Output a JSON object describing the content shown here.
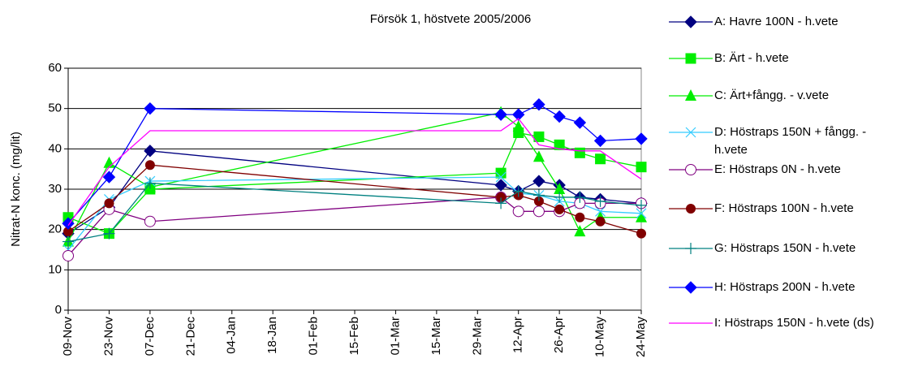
{
  "chart_data": {
    "type": "line",
    "title": "Försök 1, höstvete 2005/2006",
    "y_label": "Nitrat-N konc. (mg/lit)",
    "x": [
      "09-Nov",
      "23-Nov",
      "07-Dec",
      "06-Apr",
      "12-Apr",
      "19-Apr",
      "26-Apr",
      "03-May",
      "10-May",
      "24-May"
    ],
    "xlim": [
      "09-Nov",
      "24-May"
    ],
    "xticks": [
      "09-Nov",
      "23-Nov",
      "07-Dec",
      "21-Dec",
      "04-Jan",
      "18-Jan",
      "01-Feb",
      "15-Feb",
      "01-Mar",
      "15-Mar",
      "29-Mar",
      "12-Apr",
      "26-Apr",
      "10-May",
      "24-May"
    ],
    "ylim": [
      0,
      60
    ],
    "yticks": [
      0,
      10,
      20,
      30,
      40,
      50,
      60
    ],
    "grid": true,
    "legend": "right",
    "series": [
      {
        "name": "A: Havre 100N - h.vete",
        "color": "#000080",
        "marker": "diamond",
        "values": [
          19,
          25.5,
          39.5,
          31,
          29.5,
          32,
          31,
          28,
          27.5,
          26.5
        ]
      },
      {
        "name": "B: Ärt - h.vete",
        "color": "#00ee00",
        "marker": "square",
        "values": [
          23,
          19,
          30,
          34,
          44,
          43,
          41,
          39,
          37.5,
          35.5
        ]
      },
      {
        "name": "C: Ärt+fångg. - v.vete",
        "color": "#00ee00",
        "marker": "triangle",
        "values": [
          17,
          36.5,
          30.5,
          49,
          45.5,
          38,
          30,
          19.5,
          23,
          23
        ]
      },
      {
        "name": "D: Höstraps 150N + fångg. - h.vete",
        "color": "#33ccff",
        "marker": "x",
        "values": [
          15,
          27.5,
          32,
          33,
          29,
          28.5,
          27,
          26.5,
          24.5,
          24
        ]
      },
      {
        "name": "E: Höstraps 0N - h.vete",
        "color": "#800080",
        "marker": "open-circle",
        "values": [
          13.5,
          25,
          22,
          28,
          24.5,
          24.5,
          24.5,
          26.5,
          26.5,
          26.5
        ]
      },
      {
        "name": "F: Höstraps 100N - h.vete",
        "color": "#800000",
        "marker": "circle",
        "values": [
          19.5,
          26.5,
          36,
          28,
          28.5,
          27,
          25,
          23,
          22,
          19
        ]
      },
      {
        "name": "G: Höstraps 150N - h.vete",
        "color": "#008080",
        "marker": "plus",
        "values": [
          17,
          19,
          31.5,
          26.5,
          29.5,
          28.5,
          28,
          28,
          27,
          26
        ]
      },
      {
        "name": "H: Höstraps 200N - h.vete",
        "color": "#0000ff",
        "marker": "diamond",
        "values": [
          21.5,
          33,
          50,
          48.5,
          48.5,
          51,
          48,
          46.5,
          42,
          42.5
        ]
      },
      {
        "name": "I: Höstraps 150N - h.vete (ds)",
        "color": "#ff00ff",
        "marker": "none",
        "values": [
          21,
          35.5,
          44.5,
          44.5,
          47.5,
          41,
          40,
          39.5,
          39.5,
          32.5
        ]
      }
    ]
  }
}
